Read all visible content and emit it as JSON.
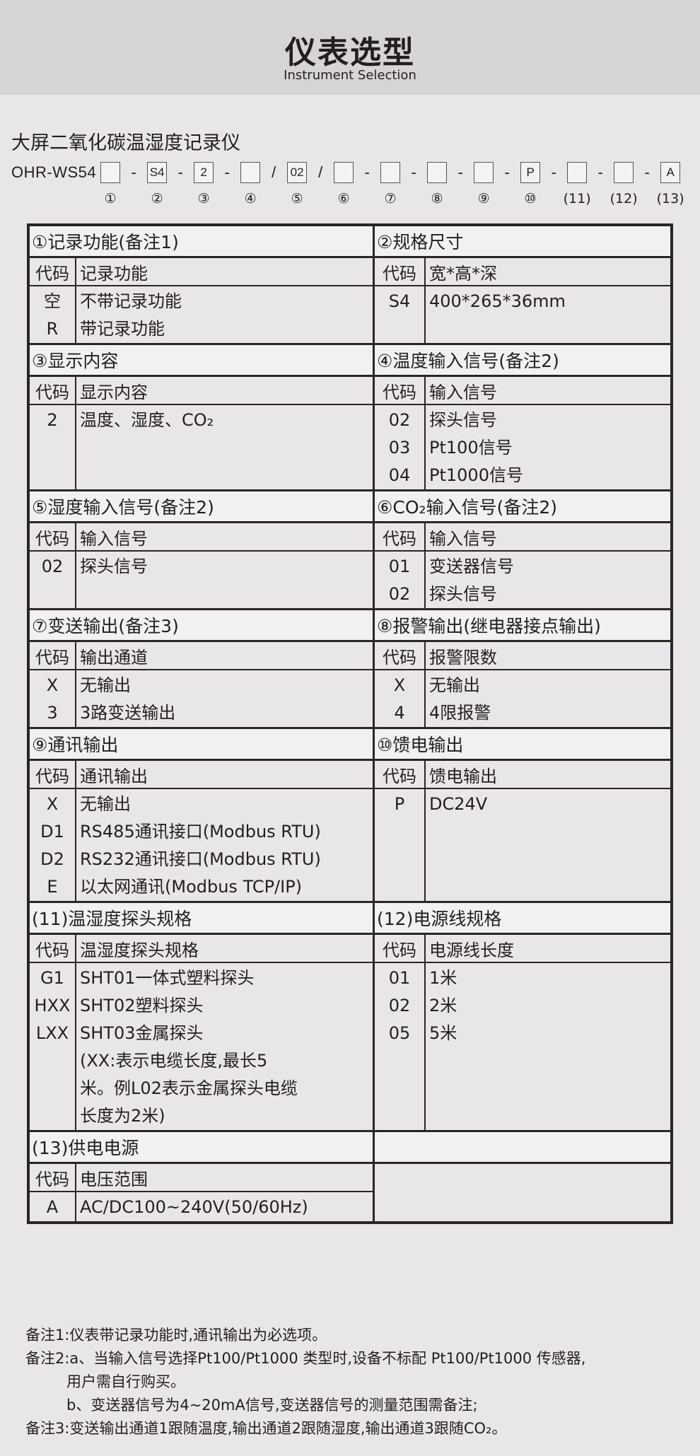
{
  "header": {
    "title": "仪表选型",
    "subtitle": "Instrument Selection"
  },
  "product_name": "大屏二氧化碳温湿度记录仪",
  "model": {
    "prefix": "OHR-WS54",
    "boxes": [
      "",
      "S4",
      "2",
      "",
      "02",
      "",
      "",
      "",
      "",
      "P",
      "",
      "",
      "A"
    ],
    "separators": [
      "-",
      "-",
      "-",
      "/",
      "/",
      "-",
      "-",
      "-",
      "-",
      "-",
      "-",
      "-"
    ],
    "numbers": [
      "①",
      "②",
      "③",
      "④",
      "⑤",
      "⑥",
      "⑦",
      "⑧",
      "⑨",
      "⑩",
      "(11)",
      "(12)",
      "(13)"
    ]
  },
  "code_header": "代码",
  "sections": [
    {
      "title": "①记录功能(备注1)",
      "col": "记录功能",
      "rows": [
        {
          "code": "空",
          "desc": "不带记录功能"
        },
        {
          "code": "R",
          "desc": "带记录功能"
        }
      ]
    },
    {
      "title": "②规格尺寸",
      "col": "宽*高*深",
      "rows": [
        {
          "code": "S4",
          "desc": "400*265*36mm"
        }
      ]
    },
    {
      "title": "③显示内容",
      "col": "显示内容",
      "rows": [
        {
          "code": "2",
          "desc": "温度、湿度、CO₂"
        }
      ]
    },
    {
      "title": "④温度输入信号(备注2)",
      "col": "输入信号",
      "rows": [
        {
          "code": "02",
          "desc": "探头信号"
        },
        {
          "code": "03",
          "desc": "Pt100信号"
        },
        {
          "code": "04",
          "desc": "Pt1000信号"
        }
      ]
    },
    {
      "title": "⑤湿度输入信号(备注2)",
      "col": "输入信号",
      "rows": [
        {
          "code": "02",
          "desc": "探头信号"
        }
      ]
    },
    {
      "title": "⑥CO₂输入信号(备注2)",
      "col": "输入信号",
      "rows": [
        {
          "code": "01",
          "desc": "变送器信号"
        },
        {
          "code": "02",
          "desc": "探头信号"
        }
      ]
    },
    {
      "title": "⑦变送输出(备注3)",
      "col": "输出通道",
      "rows": [
        {
          "code": "X",
          "desc": "无输出"
        },
        {
          "code": "3",
          "desc": "3路变送输出"
        }
      ]
    },
    {
      "title": "⑧报警输出(继电器接点输出)",
      "col": "报警限数",
      "rows": [
        {
          "code": "X",
          "desc": "无输出"
        },
        {
          "code": "4",
          "desc": "4限报警"
        }
      ]
    },
    {
      "title": "⑨通讯输出",
      "col": "通讯输出",
      "rows": [
        {
          "code": "X",
          "desc": "无输出"
        },
        {
          "code": "D1",
          "desc": "RS485通讯接口(Modbus RTU)"
        },
        {
          "code": "D2",
          "desc": "RS232通讯接口(Modbus RTU)"
        },
        {
          "code": "E",
          "desc": "以太网通讯(Modbus TCP/IP)"
        }
      ]
    },
    {
      "title": "⑩馈电输出",
      "col": "馈电输出",
      "rows": [
        {
          "code": "P",
          "desc": "DC24V"
        }
      ]
    },
    {
      "title": "(11)温湿度探头规格",
      "col": "温湿度探头规格",
      "rows": [
        {
          "code": "G1",
          "desc": "SHT01一体式塑料探头"
        },
        {
          "code": "HXX",
          "desc": "SHT02塑料探头"
        },
        {
          "code": "LXX",
          "desc": "SHT03金属探头"
        },
        {
          "code": "",
          "desc": "(XX:表示电缆长度,最长5"
        },
        {
          "code": "",
          "desc": "米。例L02表示金属探头电缆"
        },
        {
          "code": "",
          "desc": "长度为2米)"
        }
      ]
    },
    {
      "title": "(12)电源线规格",
      "col": "电源线长度",
      "rows": [
        {
          "code": "01",
          "desc": "1米"
        },
        {
          "code": "02",
          "desc": "2米"
        },
        {
          "code": "05",
          "desc": "5米"
        }
      ]
    },
    {
      "title": "(13)供电电源",
      "col": "电压范围",
      "rows": [
        {
          "code": "A",
          "desc": "AC/DC100~240V(50/60Hz)"
        }
      ]
    }
  ],
  "notes": [
    "备注1:仪表带记录功能时,通讯输出为必选项。",
    "备注2:a、当输入信号选择Pt100/Pt1000 类型时,设备不标配 Pt100/Pt1000 传感器,",
    "用户需自行购买。",
    "b、变送器信号为4~20mA信号,变送器信号的测量范围需备注;",
    "备注3:变送输出通道1跟随温度,输出通道2跟随湿度,输出通道3跟随CO₂。"
  ]
}
